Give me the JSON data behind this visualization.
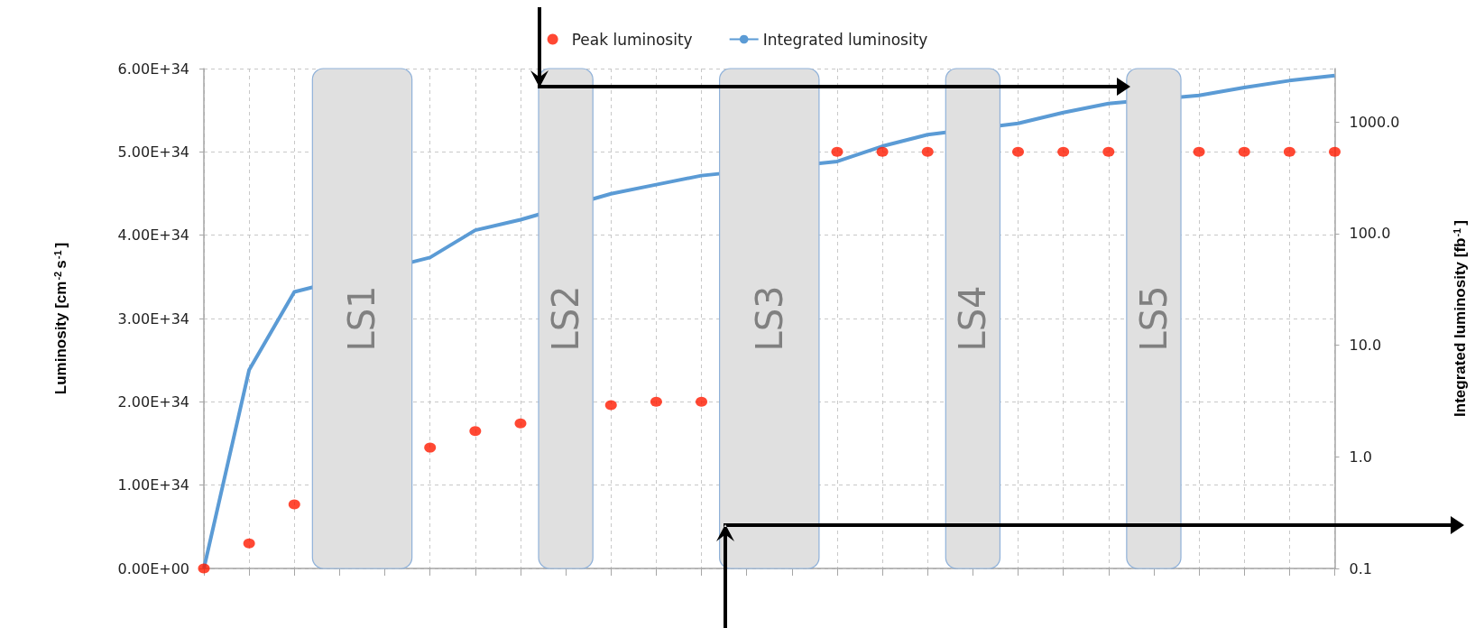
{
  "chart_data": {
    "type": "line",
    "ylabel": "Luminosity [cm$^{-2}$s$^{-1}$]",
    "y2label": "Integrated luminosity [fb$^{-1}$]",
    "categories": [
      null,
      null,
      null,
      null,
      null,
      null,
      null,
      null,
      null,
      null,
      null,
      null,
      null,
      null,
      null,
      null,
      null,
      null,
      null,
      null,
      null,
      null,
      null,
      null,
      null,
      null
    ],
    "series": [
      {
        "name": "Peak luminosity",
        "type": "scatter",
        "color": "#ff1a00",
        "marker": "circle",
        "values": [
          0,
          3e+33,
          7.7e+33,
          null,
          null,
          1.45e+34,
          1.65e+34,
          1.74e+34,
          null,
          1.96e+34,
          2e+34,
          2e+34,
          null,
          null,
          5e+34,
          5e+34,
          5e+34,
          null,
          5e+34,
          5e+34,
          5e+34,
          null,
          5e+34,
          5e+34,
          5e+34,
          5e+34
        ]
      },
      {
        "name": "Integrated luminosity",
        "axis": "y2",
        "color": "#5b9bd5",
        "marker": "none",
        "values": [
          0.1,
          6,
          30,
          null,
          null,
          61,
          107,
          133,
          null,
          227,
          274,
          330,
          null,
          null,
          442,
          605,
          767,
          null,
          968,
          1210,
          1460,
          null,
          1725,
          2030,
          2340,
          2600
        ]
      }
    ],
    "ylim": [
      0,
      6e+34
    ],
    "yticks": [
      {
        "value": 0,
        "label": "0.00E+00"
      },
      {
        "value": 1e+34,
        "label": "1.00E+34"
      },
      {
        "value": 2e+34,
        "label": "2.00E+34"
      },
      {
        "value": 3e+34,
        "label": "3.00E+34"
      },
      {
        "value": 4e+34,
        "label": "4.00E+34"
      },
      {
        "value": 5e+34,
        "label": "5.00E+34"
      },
      {
        "value": 6e+34,
        "label": "6.00E+34"
      }
    ],
    "log": "y2",
    "y2lim": [
      0.1,
      3000
    ],
    "y2ticks": [
      {
        "value": 0.1,
        "label": "0.1"
      },
      {
        "value": 1,
        "label": "1.0"
      },
      {
        "value": 10,
        "label": "10.0"
      },
      {
        "value": 100,
        "label": "100.0"
      },
      {
        "value": 1000,
        "label": "1000.0"
      }
    ],
    "annotations": [
      "LS1",
      "LS2",
      "LS3",
      "LS4",
      "LS5"
    ],
    "grid": true,
    "legend": "top"
  }
}
